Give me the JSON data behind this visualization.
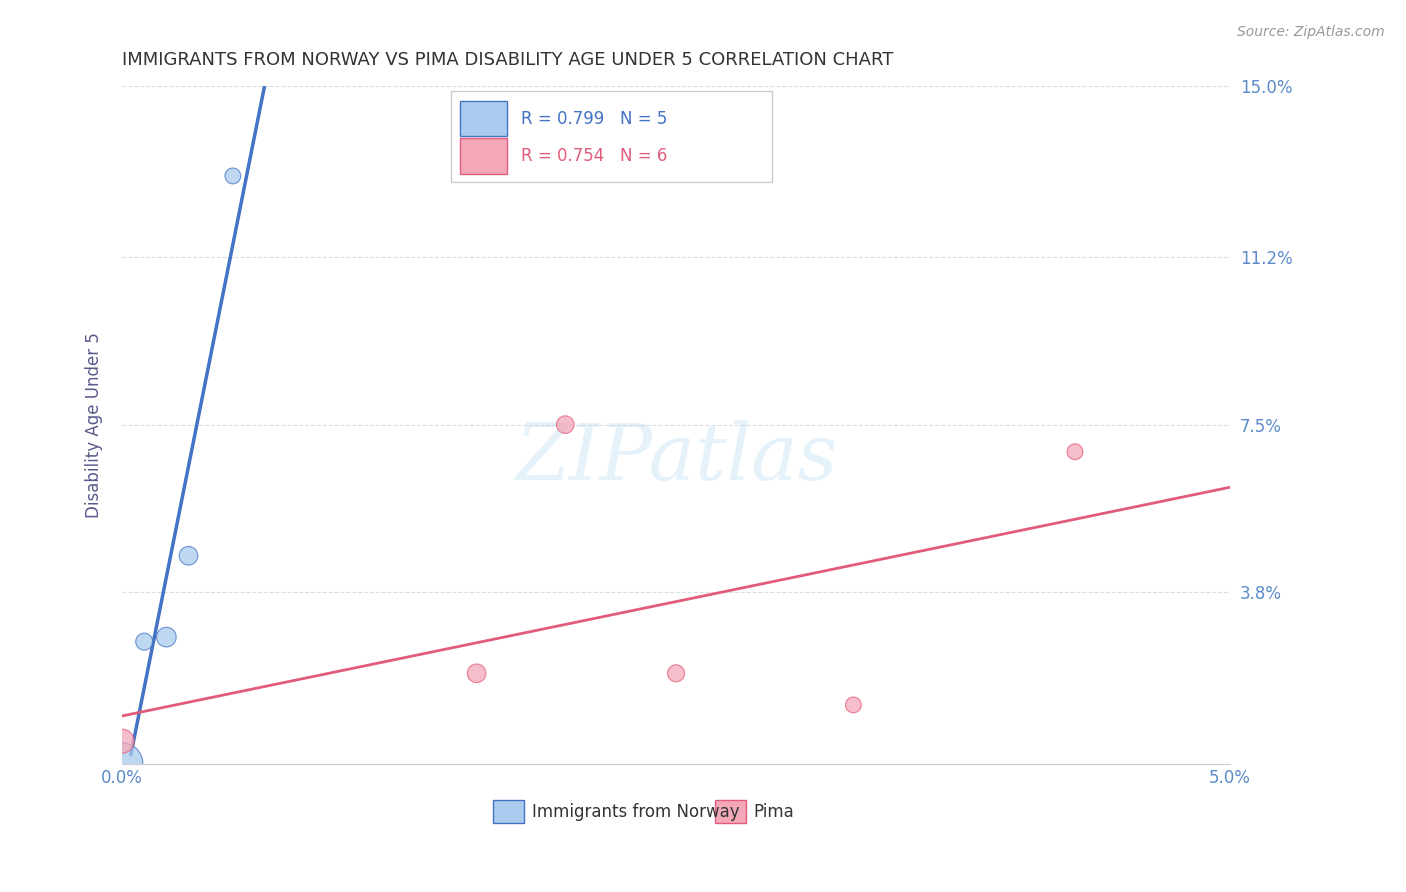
{
  "title": "IMMIGRANTS FROM NORWAY VS PIMA DISABILITY AGE UNDER 5 CORRELATION CHART",
  "source": "Source: ZipAtlas.com",
  "ylabel_left": "Disability Age Under 5",
  "xlim": [
    0.0,
    0.05
  ],
  "ylim": [
    0.0,
    0.15
  ],
  "xtick_vals": [
    0.0,
    0.01,
    0.02,
    0.03,
    0.04,
    0.05
  ],
  "xtick_labels": [
    "0.0%",
    "",
    "",
    "",
    "",
    "5.0%"
  ],
  "ytick_vals_right": [
    0.038,
    0.075,
    0.112,
    0.15
  ],
  "ytick_labels_right": [
    "3.8%",
    "7.5%",
    "11.2%",
    "15.0%"
  ],
  "norway_color": "#aaccee",
  "norway_line_color": "#4472c4",
  "pima_color": "#f4a7b9",
  "pima_line_color": "#e05c7a",
  "norway_R": 0.799,
  "norway_N": 5,
  "pima_R": 0.754,
  "pima_N": 6,
  "norway_points_x": [
    0.0,
    0.001,
    0.002,
    0.003,
    0.005
  ],
  "norway_points_y": [
    0.0,
    0.027,
    0.028,
    0.046,
    0.13
  ],
  "norway_sizes": [
    900,
    150,
    200,
    180,
    130
  ],
  "pima_points_x": [
    0.0,
    0.016,
    0.02,
    0.025,
    0.033,
    0.043
  ],
  "pima_points_y": [
    0.005,
    0.02,
    0.075,
    0.02,
    0.013,
    0.069
  ],
  "pima_sizes": [
    300,
    180,
    160,
    150,
    130,
    130
  ],
  "background_color": "#ffffff",
  "grid_color": "#dddddd",
  "title_color": "#333333",
  "axis_label_color": "#5a5a8c",
  "tick_label_color": "#5b8bc9"
}
